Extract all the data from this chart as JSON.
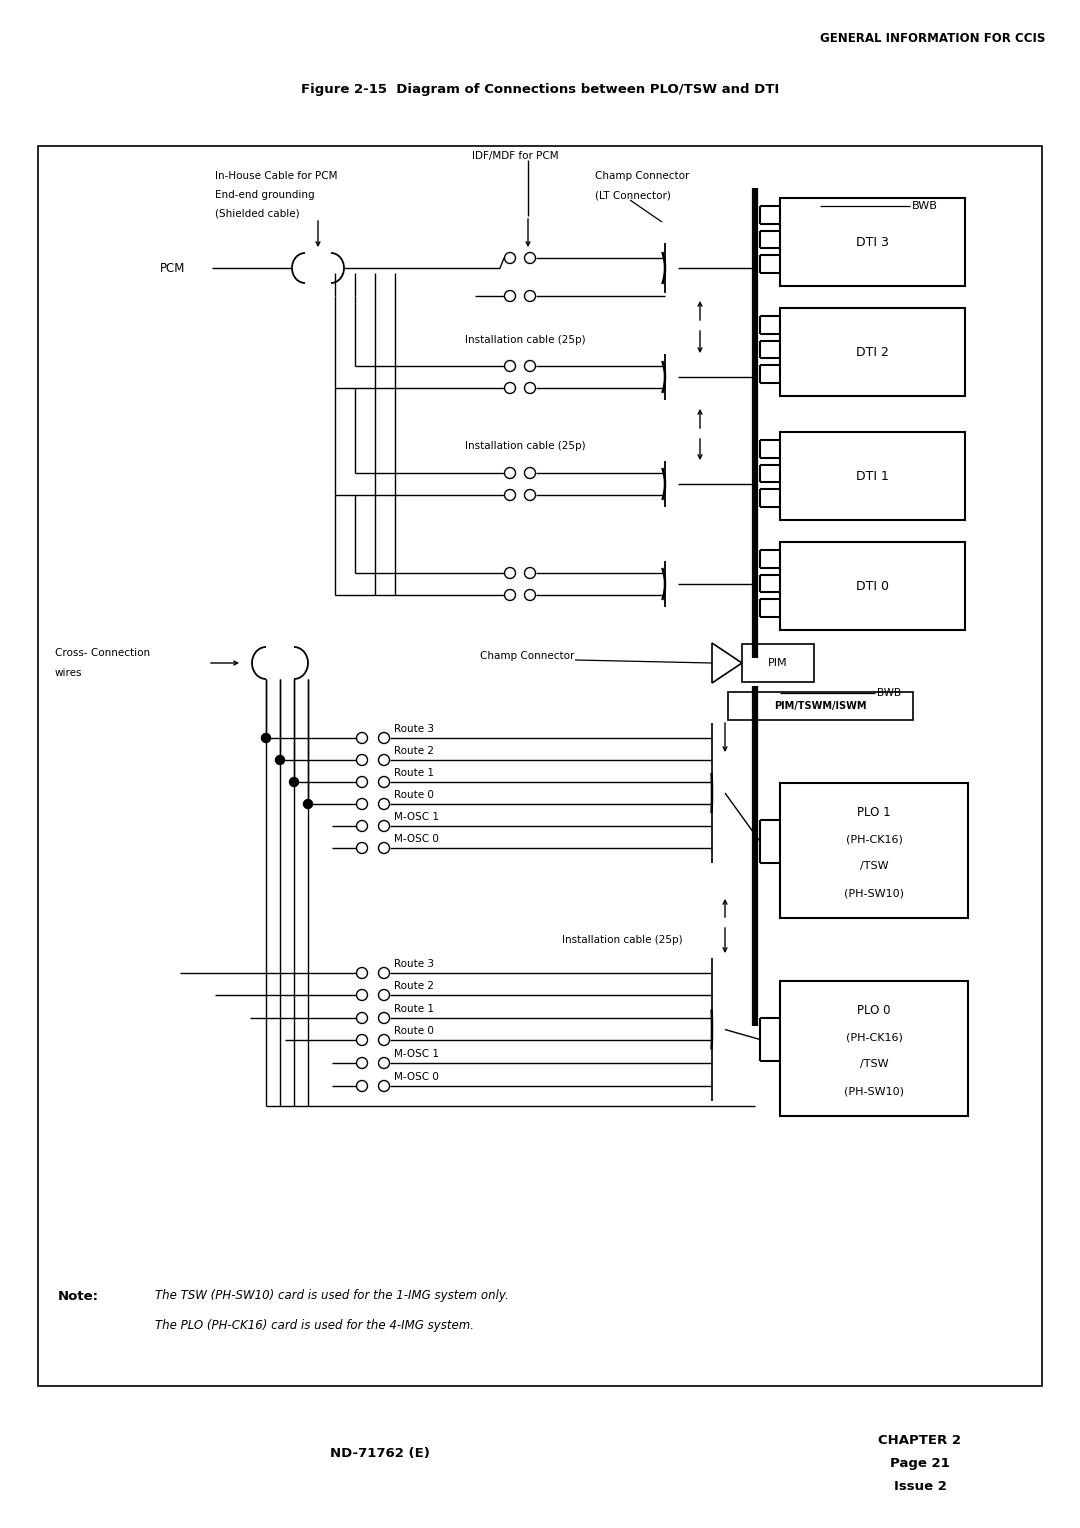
{
  "title_header": "GENERAL INFORMATION FOR CCIS",
  "figure_title": "Figure 2-15  Diagram of Connections between PLO/TSW and DTI",
  "footer_left": "ND-71762 (E)",
  "bg_color": "#ffffff"
}
